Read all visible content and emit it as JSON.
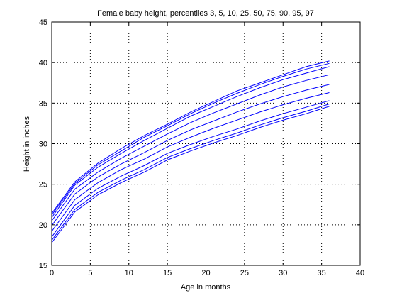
{
  "chart_data": {
    "type": "line",
    "title": "Female baby height, percentiles 3, 5, 10, 25, 50, 75, 90, 95, 97",
    "xlabel": "Age in months",
    "ylabel": "Height in inches",
    "xlim": [
      0,
      40
    ],
    "ylim": [
      15,
      45
    ],
    "xticks": [
      "0",
      "5",
      "10",
      "15",
      "20",
      "25",
      "30",
      "35",
      "40"
    ],
    "yticks": [
      "15",
      "20",
      "25",
      "30",
      "35",
      "40",
      "45"
    ],
    "grid": true,
    "line_color": "#0000ff",
    "x": [
      0,
      3,
      6,
      9,
      12,
      15,
      18,
      21,
      24,
      27,
      30,
      33,
      36
    ],
    "series": [
      {
        "values": [
          17.8,
          21.6,
          23.7,
          25.2,
          26.5,
          28.0,
          29.1,
          30.1,
          31.0,
          32.0,
          32.9,
          33.7,
          34.6
        ]
      },
      {
        "values": [
          18.1,
          21.9,
          24.0,
          25.5,
          26.8,
          28.3,
          29.4,
          30.4,
          31.3,
          32.3,
          33.2,
          34.0,
          34.9
        ]
      },
      {
        "values": [
          18.5,
          22.4,
          24.5,
          26.0,
          27.3,
          28.8,
          29.9,
          30.9,
          31.8,
          32.8,
          33.7,
          34.5,
          35.3
        ]
      },
      {
        "values": [
          19.2,
          23.1,
          25.2,
          26.8,
          28.1,
          29.6,
          30.8,
          31.9,
          32.9,
          33.9,
          34.8,
          35.6,
          36.3
        ]
      },
      {
        "values": [
          19.9,
          23.8,
          25.9,
          27.5,
          28.9,
          30.4,
          31.7,
          32.8,
          33.9,
          34.9,
          35.8,
          36.6,
          37.3
        ]
      },
      {
        "values": [
          20.5,
          24.4,
          26.5,
          28.2,
          29.7,
          31.2,
          32.6,
          33.8,
          34.9,
          36.0,
          37.0,
          37.8,
          38.5
        ]
      },
      {
        "values": [
          20.9,
          24.9,
          27.1,
          28.8,
          30.4,
          31.9,
          33.4,
          34.6,
          35.8,
          36.9,
          37.9,
          38.7,
          39.5
        ]
      },
      {
        "values": [
          21.2,
          25.1,
          27.4,
          29.1,
          30.8,
          32.2,
          33.7,
          35.0,
          36.2,
          37.3,
          38.3,
          39.2,
          39.9
        ]
      },
      {
        "values": [
          21.4,
          25.3,
          27.6,
          29.4,
          31.0,
          32.4,
          33.9,
          35.2,
          36.5,
          37.5,
          38.5,
          39.5,
          40.2
        ]
      }
    ]
  }
}
